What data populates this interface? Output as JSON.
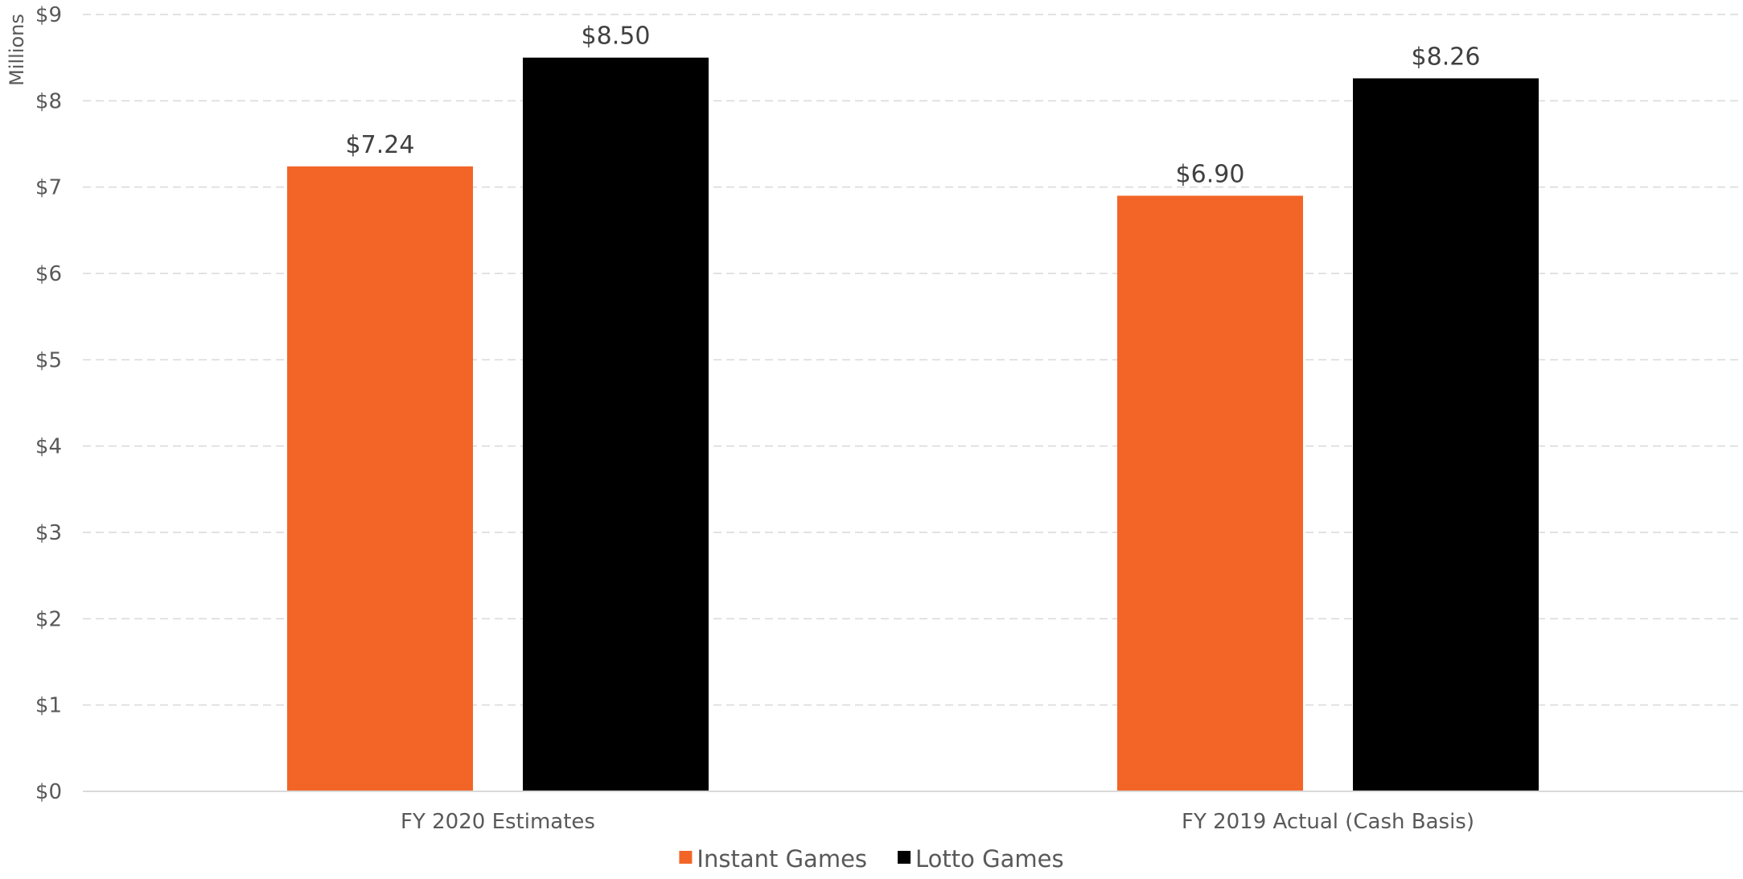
{
  "chart_data": {
    "type": "bar",
    "title": "",
    "xlabel": "",
    "ylabel": "Millions",
    "categories": [
      "FY 2020 Estimates",
      "FY 2019 Actual (Cash Basis)"
    ],
    "series": [
      {
        "name": "Instant Games",
        "values": [
          7.24,
          6.9
        ],
        "color": "#f26527"
      },
      {
        "name": "Lotto Games",
        "values": [
          8.5,
          8.26
        ],
        "color": "#000000"
      }
    ],
    "data_labels": [
      [
        "$7.24",
        "$6.90"
      ],
      [
        "$8.50",
        "$8.26"
      ]
    ],
    "ylim": [
      0,
      9
    ],
    "yticks": [
      0,
      1,
      2,
      3,
      4,
      5,
      6,
      7,
      8,
      9
    ],
    "ytick_labels": [
      "$0",
      "$1",
      "$2",
      "$3",
      "$4",
      "$5",
      "$6",
      "$7",
      "$8",
      "$9"
    ],
    "grid": true,
    "legend_position": "bottom"
  }
}
